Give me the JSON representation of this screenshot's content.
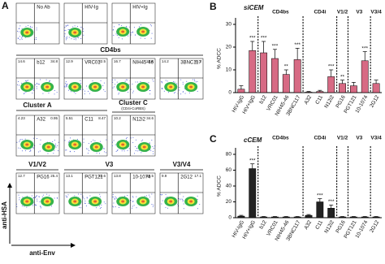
{
  "panel_a": {
    "label": "A",
    "y_axis": "anti-HSA",
    "x_axis": "anti-Env",
    "row1": [
      {
        "name": "No Ab"
      },
      {
        "name": "HIV-Ig"
      },
      {
        "name": "HIV+Ig"
      }
    ],
    "header2": "CD4bs",
    "row2": [
      {
        "name": "b12",
        "ul": 14.6,
        "ur": 34.8
      },
      {
        "name": "VRC01",
        "ul": 12.9,
        "ur": 32.5
      },
      {
        "name": "NIH45-46",
        "ul": 16.7,
        "ur": 20.6
      },
      {
        "name": "3BNC117",
        "ul": 14.2,
        "ur": 31.3
      }
    ],
    "header3": [
      "Cluster A",
      "Cluster C"
    ],
    "header3_sub": "(CD4i-CoRBS)",
    "row3": [
      {
        "name": "A32",
        "ul": 4.23,
        "ur": 0.95
      },
      {
        "name": "C11",
        "ul": 5.51,
        "ur": 8.47
      },
      {
        "name": "N12i2",
        "ul": 10.2,
        "ur": 34.6
      }
    ],
    "header4": [
      "V1/V2",
      "V3",
      "V3/V4"
    ],
    "row4": [
      {
        "name": "PG16",
        "ul": 12.7,
        "ur": 25.4
      },
      {
        "name": "PGT121",
        "ul": 13.1,
        "ur": 22.6
      },
      {
        "name": "10-1074",
        "ul": 13.8,
        "ur": 26.5
      },
      {
        "name": "2G12",
        "ul": 9.9,
        "ur": 17.1
      }
    ]
  },
  "chart_data": [
    {
      "type": "bar",
      "panel": "B",
      "title": "siCEM",
      "y_label": "% ADCC",
      "color": "#d0506e",
      "categories": [
        "HIV-IgG",
        "HIV+IgG",
        "b12",
        "VRC01",
        "NIH45-46",
        "3BNC117",
        "A32",
        "C11",
        "N12i2",
        "PG16",
        "PGT121",
        "10-1074",
        "2G12"
      ],
      "values": [
        1.5,
        18.5,
        17.5,
        15,
        8,
        14.5,
        0.2,
        0.5,
        7,
        4,
        3,
        14,
        4
      ],
      "errors": [
        1.5,
        4,
        5,
        4,
        2,
        5,
        0.3,
        0.5,
        3,
        1.5,
        1.5,
        4,
        1.5
      ],
      "significance": [
        null,
        "***",
        "***",
        "***",
        "**",
        "***",
        null,
        null,
        "***",
        "**",
        null,
        "***",
        null
      ],
      "groups": [
        "CD4bs",
        "CD4i",
        "V1/2",
        "V3",
        "V3/4"
      ],
      "ylim": [
        0,
        30
      ],
      "yticks": [
        0,
        10,
        20,
        30
      ]
    },
    {
      "type": "bar",
      "panel": "C",
      "title": "cCEM",
      "y_label": "% ADCC",
      "color": "#222222",
      "categories": [
        "HIV-IgG",
        "HIV+IgG",
        "b12",
        "VRC01",
        "NIH45-46",
        "3BNC117",
        "A32",
        "C11",
        "N12i2",
        "PG16",
        "PGT121",
        "10-1074",
        "2G12"
      ],
      "values": [
        2,
        62,
        1,
        1,
        1,
        1,
        3,
        20,
        12,
        1,
        1,
        1,
        1
      ],
      "errors": [
        1,
        6,
        0.5,
        0.5,
        0.5,
        0.5,
        1,
        4,
        4,
        0.5,
        0.5,
        0.5,
        0.5
      ],
      "significance": [
        null,
        "***",
        null,
        null,
        null,
        null,
        null,
        "***",
        "***",
        null,
        null,
        null,
        null
      ],
      "groups": [
        "CD4bs",
        "CD4i",
        "V1/2",
        "V3",
        "V3/4"
      ],
      "ylim": [
        0,
        80
      ],
      "yticks": [
        0,
        20,
        40,
        60,
        80
      ]
    }
  ]
}
